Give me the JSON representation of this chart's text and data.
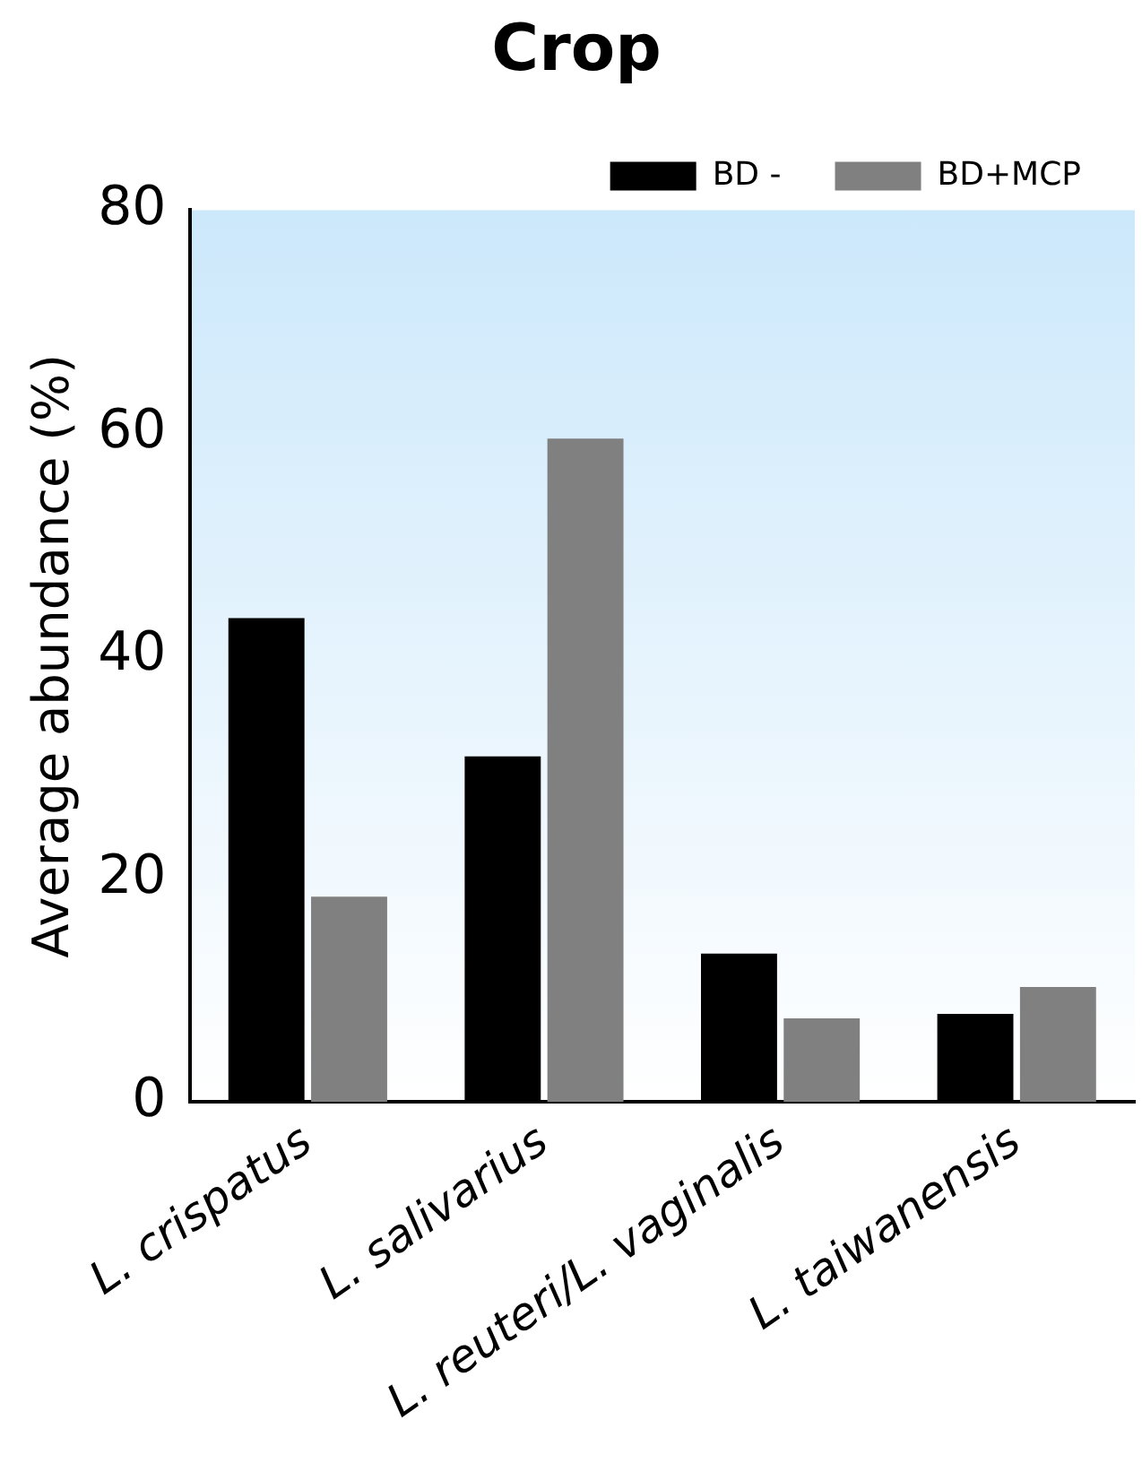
{
  "chart_data": {
    "type": "bar",
    "title": "Crop",
    "ylabel": "Average abundance (%)",
    "categories": [
      "L. crispatus",
      "L. salivarius",
      "L. reuteri/L. vaginalis",
      "L. taiwanensis"
    ],
    "series": [
      {
        "name": "BD -",
        "color": "#000000",
        "values": [
          43.4,
          31.0,
          13.3,
          7.9
        ]
      },
      {
        "name": "BD+MCP",
        "color": "#808080",
        "values": [
          18.4,
          59.5,
          7.5,
          10.3
        ]
      }
    ],
    "ylim": [
      0,
      80
    ],
    "yticks": [
      0,
      20,
      40,
      60,
      80
    ],
    "grid": false,
    "legend": "top right"
  }
}
